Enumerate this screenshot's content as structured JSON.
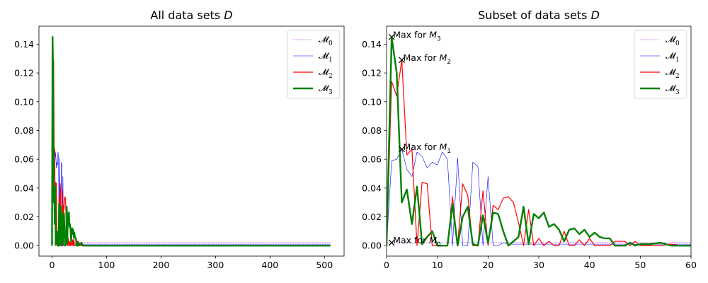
{
  "chart_data": [
    {
      "type": "line",
      "title": "All data sets D",
      "xlabel": "",
      "ylabel": "",
      "xlim": [
        -24,
        536
      ],
      "ylim": [
        -0.0073,
        0.1525
      ],
      "xticks": [
        0,
        100,
        200,
        300,
        400,
        500
      ],
      "yticks": [
        0.0,
        0.02,
        0.04,
        0.06,
        0.08,
        0.1,
        0.12,
        0.14
      ],
      "legend_position": "top-right",
      "series": [
        {
          "name": "𝓜0",
          "color": "#9400d3",
          "x": [
            0,
            1,
            2,
            4,
            6,
            8,
            10,
            20,
            30,
            40,
            60,
            100,
            200,
            300,
            400,
            511
          ],
          "values": [
            0.002,
            0.002,
            0.002,
            0.002,
            0.002,
            0.002,
            0.002,
            0.002,
            0.002,
            0.002,
            0.002,
            0.002,
            0.002,
            0.002,
            0.002,
            0.002
          ]
        },
        {
          "name": "𝓜1",
          "color": "#0000ff",
          "x": [
            0,
            1,
            2,
            3,
            4,
            5,
            6,
            7,
            8,
            9,
            10,
            11,
            12,
            13,
            14,
            15,
            16,
            17,
            18,
            19,
            20,
            21,
            22,
            23,
            24,
            25,
            26,
            27,
            28,
            29,
            30,
            31,
            32,
            33,
            34,
            35,
            36,
            37,
            38,
            39,
            40,
            41,
            42,
            43,
            44,
            45,
            46,
            47,
            48,
            49,
            50,
            52,
            54,
            56,
            58,
            60,
            80,
            100,
            200,
            300,
            400,
            511
          ],
          "values": [
            0.0,
            0.059,
            0.06,
            0.067,
            0.053,
            0.048,
            0.065,
            0.062,
            0.054,
            0.058,
            0.056,
            0.065,
            0.06,
            0.0,
            0.061,
            0.0,
            0.0,
            0.058,
            0.055,
            0.0,
            0.048,
            0.0,
            0.0,
            0.002,
            0.001,
            0.001,
            0.001,
            0.001,
            0.001,
            0.001,
            0.001,
            0.001,
            0.001,
            0.001,
            0.001,
            0.001,
            0.001,
            0.001,
            0.001,
            0.001,
            0.001,
            0.001,
            0.001,
            0.001,
            0.001,
            0.001,
            0.001,
            0.001,
            0.001,
            0.001,
            0.001,
            0.001,
            0.001,
            0.001,
            0.001,
            0.001,
            0.001,
            0.001,
            0.001,
            0.001,
            0.001,
            0.001
          ]
        },
        {
          "name": "𝓜2",
          "color": "#ff0000",
          "x": [
            0,
            1,
            2,
            3,
            4,
            5,
            6,
            7,
            8,
            9,
            10,
            11,
            12,
            13,
            14,
            15,
            16,
            17,
            18,
            19,
            20,
            21,
            22,
            23,
            24,
            25,
            26,
            27,
            28,
            29,
            30,
            31,
            32,
            33,
            34,
            35,
            36,
            37,
            38,
            39,
            40,
            41,
            42,
            43,
            44,
            45,
            46,
            47,
            48,
            49,
            50,
            52,
            54,
            56,
            58,
            60,
            80,
            100,
            200,
            300,
            400,
            511
          ],
          "values": [
            0.0,
            0.114,
            0.104,
            0.129,
            0.063,
            0.067,
            0.0,
            0.044,
            0.043,
            0.0,
            0.0,
            0.0,
            0.0,
            0.034,
            0.0,
            0.043,
            0.035,
            0.0,
            0.0,
            0.038,
            0.0,
            0.028,
            0.025,
            0.033,
            0.034,
            0.03,
            0.016,
            0.0,
            0.025,
            0.0,
            0.005,
            0.0,
            0.003,
            0.0,
            0.0,
            0.01,
            0.0,
            0.0,
            0.004,
            0.0,
            0.005,
            0.0,
            0.0,
            0.0,
            0.0,
            0.003,
            0.003,
            0.003,
            0.0,
            0.003,
            0.0,
            0.0,
            0.0,
            0.001,
            0.0,
            0.0,
            0.0,
            0.0,
            0.0,
            0.0,
            0.0,
            0.0
          ]
        },
        {
          "name": "𝓜3",
          "color": "#008000",
          "x": [
            0,
            1,
            2,
            3,
            4,
            5,
            6,
            7,
            8,
            9,
            10,
            11,
            12,
            13,
            14,
            15,
            16,
            17,
            18,
            19,
            20,
            21,
            22,
            23,
            24,
            25,
            26,
            27,
            28,
            29,
            30,
            31,
            32,
            33,
            34,
            35,
            36,
            37,
            38,
            39,
            40,
            41,
            42,
            43,
            44,
            45,
            46,
            47,
            48,
            49,
            50,
            52,
            54,
            56,
            58,
            60,
            80,
            100,
            200,
            300,
            400,
            511
          ],
          "values": [
            0.0,
            0.145,
            0.12,
            0.03,
            0.039,
            0.015,
            0.041,
            0.001,
            0.006,
            0.01,
            0.0,
            0.0,
            0.0,
            0.029,
            0.0,
            0.02,
            0.027,
            0.001,
            0.0,
            0.021,
            0.002,
            0.023,
            0.022,
            0.01,
            0.0,
            0.003,
            0.006,
            0.027,
            0.001,
            0.022,
            0.019,
            0.023,
            0.013,
            0.015,
            0.011,
            0.003,
            0.011,
            0.012,
            0.008,
            0.011,
            0.006,
            0.009,
            0.006,
            0.005,
            0.005,
            0.0,
            0.0,
            0.0,
            0.002,
            0.0,
            0.001,
            0.001,
            0.002,
            0.0,
            0.0,
            0.0,
            0.0,
            0.0,
            0.0,
            0.0,
            0.0,
            0.0
          ]
        }
      ]
    },
    {
      "type": "line",
      "title": "Subset of data sets D",
      "xlabel": "",
      "ylabel": "",
      "xlim": [
        0,
        60
      ],
      "ylim": [
        -0.0073,
        0.1525
      ],
      "xticks": [
        0,
        10,
        20,
        30,
        40,
        50,
        60
      ],
      "yticks": [
        0.0,
        0.02,
        0.04,
        0.06,
        0.08,
        0.1,
        0.12,
        0.14
      ],
      "legend_position": "top-right",
      "series": [
        {
          "name": "𝓜0",
          "color": "#9400d3",
          "x": [
            0,
            1,
            2,
            4,
            6,
            8,
            10,
            20,
            30,
            40,
            50,
            60
          ],
          "values": [
            0.002,
            0.002,
            0.002,
            0.002,
            0.002,
            0.002,
            0.002,
            0.002,
            0.002,
            0.002,
            0.002,
            0.002
          ]
        },
        {
          "name": "𝓜1",
          "color": "#0000ff",
          "x": [
            0,
            1,
            2,
            3,
            4,
            5,
            6,
            7,
            8,
            9,
            10,
            11,
            12,
            13,
            14,
            15,
            16,
            17,
            18,
            19,
            20,
            21,
            22,
            23,
            24,
            25,
            26,
            27,
            28,
            29,
            30,
            31,
            32,
            33,
            34,
            35,
            36,
            37,
            38,
            39,
            40,
            41,
            42,
            43,
            44,
            45,
            46,
            47,
            48,
            49,
            50,
            52,
            54,
            56,
            58,
            60
          ],
          "values": [
            0.0,
            0.059,
            0.06,
            0.067,
            0.053,
            0.048,
            0.065,
            0.062,
            0.054,
            0.058,
            0.056,
            0.065,
            0.06,
            0.0,
            0.061,
            0.0,
            0.0,
            0.058,
            0.055,
            0.0,
            0.048,
            0.0,
            0.0,
            0.002,
            0.001,
            0.001,
            0.001,
            0.001,
            0.001,
            0.001,
            0.001,
            0.001,
            0.001,
            0.001,
            0.001,
            0.001,
            0.001,
            0.001,
            0.001,
            0.001,
            0.001,
            0.001,
            0.001,
            0.001,
            0.001,
            0.001,
            0.001,
            0.001,
            0.001,
            0.001,
            0.001,
            0.001,
            0.001,
            0.001,
            0.001,
            0.001
          ]
        },
        {
          "name": "𝓜2",
          "color": "#ff0000",
          "x": [
            0,
            1,
            2,
            3,
            4,
            5,
            6,
            7,
            8,
            9,
            10,
            11,
            12,
            13,
            14,
            15,
            16,
            17,
            18,
            19,
            20,
            21,
            22,
            23,
            24,
            25,
            26,
            27,
            28,
            29,
            30,
            31,
            32,
            33,
            34,
            35,
            36,
            37,
            38,
            39,
            40,
            41,
            42,
            43,
            44,
            45,
            46,
            47,
            48,
            49,
            50,
            52,
            54,
            56,
            58,
            60
          ],
          "values": [
            0.0,
            0.114,
            0.104,
            0.129,
            0.063,
            0.067,
            0.0,
            0.044,
            0.043,
            0.0,
            0.0,
            0.0,
            0.0,
            0.034,
            0.0,
            0.043,
            0.035,
            0.0,
            0.0,
            0.038,
            0.0,
            0.028,
            0.025,
            0.033,
            0.034,
            0.03,
            0.016,
            0.0,
            0.025,
            0.0,
            0.005,
            0.0,
            0.003,
            0.0,
            0.0,
            0.01,
            0.0,
            0.0,
            0.004,
            0.0,
            0.005,
            0.0,
            0.0,
            0.0,
            0.0,
            0.003,
            0.003,
            0.003,
            0.0,
            0.003,
            0.0,
            0.0,
            0.0,
            0.001,
            0.0,
            0.0
          ]
        },
        {
          "name": "𝓜3",
          "color": "#008000",
          "x": [
            0,
            1,
            2,
            3,
            4,
            5,
            6,
            7,
            8,
            9,
            10,
            11,
            12,
            13,
            14,
            15,
            16,
            17,
            18,
            19,
            20,
            21,
            22,
            23,
            24,
            25,
            26,
            27,
            28,
            29,
            30,
            31,
            32,
            33,
            34,
            35,
            36,
            37,
            38,
            39,
            40,
            41,
            42,
            43,
            44,
            45,
            46,
            47,
            48,
            49,
            50,
            52,
            54,
            56,
            58,
            60
          ],
          "values": [
            0.0,
            0.145,
            0.12,
            0.03,
            0.039,
            0.015,
            0.041,
            0.001,
            0.006,
            0.01,
            0.0,
            0.0,
            0.0,
            0.029,
            0.0,
            0.02,
            0.027,
            0.001,
            0.0,
            0.021,
            0.002,
            0.023,
            0.022,
            0.01,
            0.0,
            0.003,
            0.006,
            0.027,
            0.001,
            0.022,
            0.019,
            0.023,
            0.013,
            0.015,
            0.011,
            0.003,
            0.011,
            0.012,
            0.008,
            0.011,
            0.006,
            0.009,
            0.006,
            0.005,
            0.005,
            0.0,
            0.0,
            0.0,
            0.002,
            0.0,
            0.001,
            0.001,
            0.002,
            0.0,
            0.0,
            0.0
          ]
        }
      ],
      "annotations": [
        {
          "text": "Max for M3",
          "x": 1,
          "y": 0.145
        },
        {
          "text": "Max for M2",
          "x": 3,
          "y": 0.129
        },
        {
          "text": "Max for M1",
          "x": 3,
          "y": 0.067
        },
        {
          "text": "Max for M0",
          "x": 1,
          "y": 0.002
        }
      ]
    }
  ]
}
